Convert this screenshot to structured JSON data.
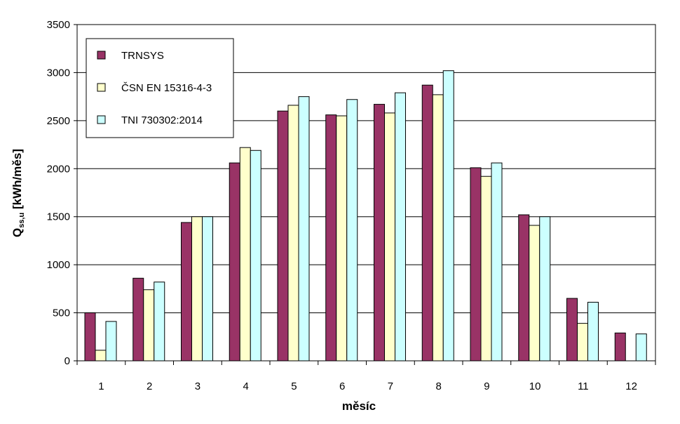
{
  "chart_data": {
    "type": "bar",
    "xlabel": "měsíc",
    "ylabel": {
      "main": "Q",
      "sub": "ss,u",
      "unit": " [kWh/měs]"
    },
    "categories": [
      "1",
      "2",
      "3",
      "4",
      "5",
      "6",
      "7",
      "8",
      "9",
      "10",
      "11",
      "12"
    ],
    "ylim": [
      0,
      3500
    ],
    "yticks": [
      0,
      500,
      1000,
      1500,
      2000,
      2500,
      3000,
      3500
    ],
    "grid": true,
    "legend_position": "top-left",
    "series": [
      {
        "name": "TRNSYS",
        "color": "#993366",
        "values": [
          500,
          860,
          1440,
          2060,
          2600,
          2560,
          2670,
          2870,
          2010,
          1520,
          650,
          290
        ]
      },
      {
        "name": "ČSN EN 15316-4-3",
        "color": "#ffffcc",
        "values": [
          110,
          740,
          1500,
          2220,
          2660,
          2550,
          2580,
          2770,
          1920,
          1410,
          390,
          0
        ]
      },
      {
        "name": "TNI 730302:2014",
        "color": "#ccffff",
        "values": [
          410,
          820,
          1500,
          2190,
          2750,
          2720,
          2790,
          3020,
          2060,
          1500,
          610,
          280
        ]
      }
    ]
  }
}
